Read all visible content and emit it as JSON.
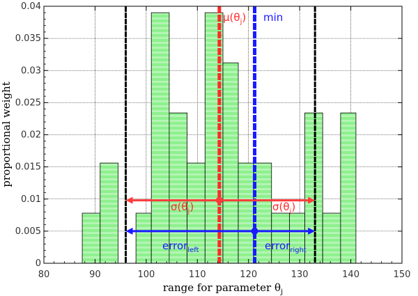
{
  "chart_data": {
    "type": "bar",
    "bins": [
      {
        "x0": 87.5,
        "x1": 91,
        "y": 0.0078
      },
      {
        "x0": 91,
        "x1": 94.5,
        "y": 0.0156
      },
      {
        "x0": 94.5,
        "x1": 98,
        "y": 0
      },
      {
        "x0": 98,
        "x1": 101,
        "y": 0.0078
      },
      {
        "x0": 101,
        "x1": 104.5,
        "y": 0.039
      },
      {
        "x0": 104.5,
        "x1": 108,
        "y": 0.0234
      },
      {
        "x0": 108,
        "x1": 111.5,
        "y": 0.0156
      },
      {
        "x0": 111.5,
        "x1": 115,
        "y": 0.039
      },
      {
        "x0": 115,
        "x1": 118,
        "y": 0.0312
      },
      {
        "x0": 118,
        "x1": 121,
        "y": 0.0156
      },
      {
        "x0": 121,
        "x1": 124.5,
        "y": 0.0156
      },
      {
        "x0": 124.5,
        "x1": 128,
        "y": 0.0078
      },
      {
        "x0": 128,
        "x1": 131,
        "y": 0.0078
      },
      {
        "x0": 131,
        "x1": 134.5,
        "y": 0.0234
      },
      {
        "x0": 134.5,
        "x1": 138,
        "y": 0.0078
      },
      {
        "x0": 138,
        "x1": 141,
        "y": 0.0234
      }
    ],
    "xlim": [
      80,
      150
    ],
    "ylim": [
      0,
      0.04
    ],
    "xticks": [
      80,
      90,
      100,
      110,
      120,
      130,
      140,
      150
    ],
    "xtick_labels": [
      "80",
      "90",
      "100",
      "110",
      "120",
      "130",
      "140",
      "150"
    ],
    "yticks": [
      0,
      0.005,
      0.01,
      0.015,
      0.02,
      0.025,
      0.03,
      0.035,
      0.04
    ],
    "ytick_labels": [
      "0",
      "0.005",
      "0.01",
      "0.015",
      "0.02",
      "0.025",
      "0.03",
      "0.035",
      "0.04"
    ],
    "xlabel_main": "range for parameter θ",
    "xlabel_sub": "j",
    "ylabel": "proportional weight",
    "grid": true,
    "vlines": [
      {
        "x": 96,
        "color": "#000000",
        "role": "lower bound"
      },
      {
        "x": 133,
        "color": "#000000",
        "role": "upper bound"
      },
      {
        "x": 114.3,
        "color": "#ff2a2a",
        "role": "mean"
      },
      {
        "x": 121.2,
        "color": "#1a1aff",
        "role": "min"
      }
    ],
    "arrows": [
      {
        "from": 114.3,
        "to": 96,
        "y": 0.0098,
        "color": "#ff3b3b"
      },
      {
        "from": 114.3,
        "to": 133,
        "y": 0.0098,
        "color": "#ff3b3b"
      },
      {
        "from": 121.2,
        "to": 96,
        "y": 0.005,
        "color": "#1a1aff"
      },
      {
        "from": 121.2,
        "to": 133,
        "y": 0.005,
        "color": "#1a1aff"
      }
    ],
    "annotations": {
      "mu_main": "μ(θ",
      "mu_sub": "j",
      "mu_close": ")",
      "min": "min",
      "sigma_main": "σ(θ",
      "sigma_sub": "j",
      "sigma_close": ")",
      "error_main": "error",
      "error_left_sub": "left",
      "error_right_sub": "right"
    },
    "colors": {
      "bar_fill": "#8ef08e",
      "bar_stripe": "#b4f5b4",
      "bar_edge": "#000000",
      "mean": "#ff2a2a",
      "min": "#1a1aff",
      "sigma_text": "#ff2a2a",
      "error_text": "#1a1aff",
      "bound": "#000000"
    }
  }
}
